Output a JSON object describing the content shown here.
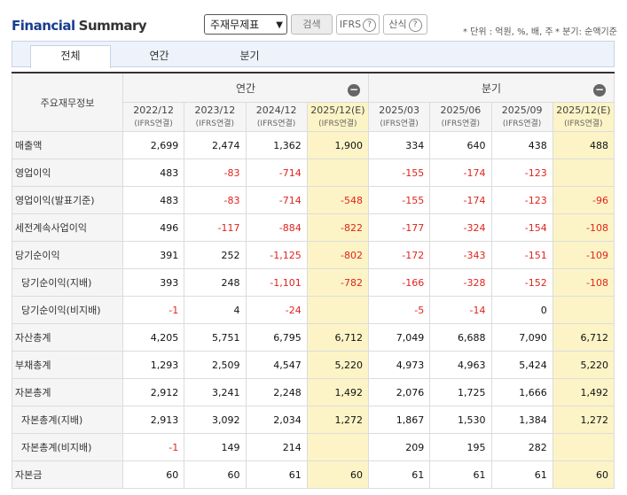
{
  "header": {
    "title_part1": "Financial",
    "title_part2": "Summary",
    "select_value": "주재무제표",
    "search_label": "검색",
    "ifrs_label": "IFRS",
    "calc_label": "산식",
    "unit_note": "* 단위 : 억원, %, 배, 주",
    "period_note": "* 분기: 순액기준"
  },
  "tabs": [
    "전체",
    "연간",
    "분기"
  ],
  "table": {
    "corner_label": "주요재무정보",
    "group_annual": "연간",
    "group_quarter": "분기",
    "periods": [
      {
        "date": "2022/12",
        "basis": "(IFRS연결)"
      },
      {
        "date": "2023/12",
        "basis": "(IFRS연결)"
      },
      {
        "date": "2024/12",
        "basis": "(IFRS연결)"
      },
      {
        "date": "2025/12(E)",
        "basis": "(IFRS연결)"
      },
      {
        "date": "2025/03",
        "basis": "(IFRS연결)"
      },
      {
        "date": "2025/06",
        "basis": "(IFRS연결)"
      },
      {
        "date": "2025/09",
        "basis": "(IFRS연결)"
      },
      {
        "date": "2025/12(E)",
        "basis": "(IFRS연결)"
      }
    ],
    "rows": [
      {
        "label": "매출액",
        "values": [
          "2,699",
          "2,474",
          "1,362",
          "1,900",
          "334",
          "640",
          "438",
          "488"
        ]
      },
      {
        "label": "영업이익",
        "values": [
          "483",
          "-83",
          "-714",
          "",
          "-155",
          "-174",
          "-123",
          ""
        ]
      },
      {
        "label": "영업이익(발표기준)",
        "values": [
          "483",
          "-83",
          "-714",
          "-548",
          "-155",
          "-174",
          "-123",
          "-96"
        ]
      },
      {
        "label": "세전계속사업이익",
        "values": [
          "496",
          "-117",
          "-884",
          "-822",
          "-177",
          "-324",
          "-154",
          "-108"
        ]
      },
      {
        "label": "당기순이익",
        "values": [
          "391",
          "252",
          "-1,125",
          "-802",
          "-172",
          "-343",
          "-151",
          "-109"
        ]
      },
      {
        "label": "당기순이익(지배)",
        "values": [
          "393",
          "248",
          "-1,101",
          "-782",
          "-166",
          "-328",
          "-152",
          "-108"
        ]
      },
      {
        "label": "당기순이익(비지배)",
        "values": [
          "-1",
          "4",
          "-24",
          "",
          "-5",
          "-14",
          "0",
          ""
        ]
      },
      {
        "label": "자산총계",
        "values": [
          "4,205",
          "5,751",
          "6,795",
          "6,712",
          "7,049",
          "6,688",
          "7,090",
          "6,712"
        ]
      },
      {
        "label": "부채총계",
        "values": [
          "1,293",
          "2,509",
          "4,547",
          "5,220",
          "4,973",
          "4,963",
          "5,424",
          "5,220"
        ]
      },
      {
        "label": "자본총계",
        "values": [
          "2,912",
          "3,241",
          "2,248",
          "1,492",
          "2,076",
          "1,725",
          "1,666",
          "1,492"
        ]
      },
      {
        "label": "자본총계(지배)",
        "values": [
          "2,913",
          "3,092",
          "2,034",
          "1,272",
          "1,867",
          "1,530",
          "1,384",
          "1,272"
        ]
      },
      {
        "label": "자본총계(비지배)",
        "values": [
          "-1",
          "149",
          "214",
          "",
          "209",
          "195",
          "282",
          ""
        ]
      },
      {
        "label": "자본금",
        "values": [
          "60",
          "60",
          "61",
          "60",
          "61",
          "61",
          "61",
          "60"
        ]
      }
    ]
  }
}
